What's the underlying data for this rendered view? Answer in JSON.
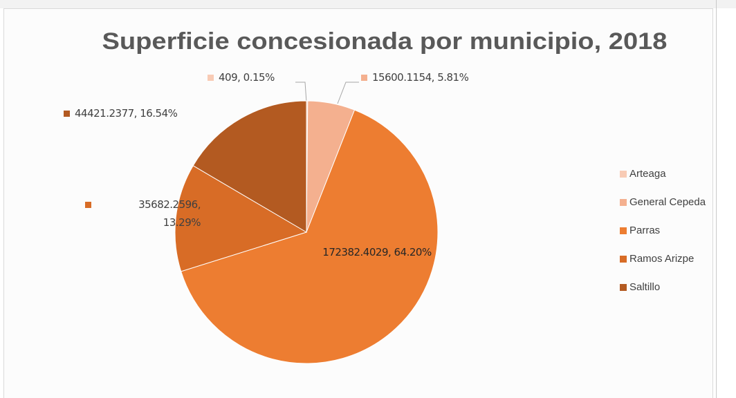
{
  "chart_data": {
    "type": "pie",
    "title": "Superficie concesionada por municipio, 2018",
    "categories": [
      "Arteaga",
      "General Cepeda",
      "Parras",
      "Ramos Arizpe",
      "Saltillo"
    ],
    "values": [
      409,
      15600.1154,
      172382.4029,
      35682.2596,
      44421.2377
    ],
    "value_labels": [
      "409, 0.15%",
      "15600.1154, 5.81%",
      "172382.4029, 64.20%",
      "35682.2596, 13.29%",
      "44421.2377, 16.54%"
    ],
    "colors": [
      "#f8cbb5",
      "#f4b08f",
      "#ed7d31",
      "#d86c26",
      "#b35a21"
    ],
    "legend": "right"
  }
}
